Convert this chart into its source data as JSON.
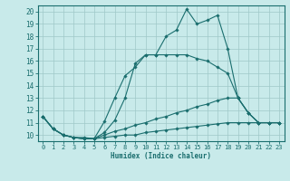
{
  "xlabel": "Humidex (Indice chaleur)",
  "bg_color": "#c8eaea",
  "grid_color": "#9fc8c8",
  "line_color": "#1a6e6e",
  "xlim": [
    -0.5,
    23.5
  ],
  "ylim": [
    9.5,
    20.5
  ],
  "xticks": [
    0,
    1,
    2,
    3,
    4,
    5,
    6,
    7,
    8,
    9,
    10,
    11,
    12,
    13,
    14,
    15,
    16,
    17,
    18,
    19,
    20,
    21,
    22,
    23
  ],
  "yticks": [
    10,
    11,
    12,
    13,
    14,
    15,
    16,
    17,
    18,
    19,
    20
  ],
  "lines": [
    {
      "x": [
        0,
        1,
        2,
        3,
        4,
        5,
        6,
        7,
        8,
        9,
        10,
        11,
        12,
        13,
        14,
        15,
        16,
        17,
        18,
        19,
        20,
        21,
        22,
        23
      ],
      "y": [
        11.5,
        10.5,
        10.0,
        9.8,
        9.8,
        9.7,
        11.1,
        13.0,
        14.8,
        15.5,
        16.5,
        16.5,
        18.0,
        18.5,
        20.2,
        19.0,
        19.3,
        19.7,
        17.0,
        13.0,
        11.8,
        11.0,
        11.0,
        11.0
      ]
    },
    {
      "x": [
        0,
        1,
        2,
        3,
        4,
        5,
        6,
        7,
        8,
        9,
        10,
        11,
        12,
        13,
        14,
        15,
        16,
        17,
        18,
        19,
        20,
        21,
        22,
        23
      ],
      "y": [
        11.5,
        10.5,
        10.0,
        9.8,
        9.7,
        9.7,
        10.2,
        11.2,
        13.0,
        15.8,
        16.5,
        16.5,
        16.5,
        16.5,
        16.5,
        16.2,
        16.0,
        15.5,
        15.0,
        13.0,
        11.8,
        11.0,
        11.0,
        11.0
      ]
    },
    {
      "x": [
        0,
        1,
        2,
        3,
        4,
        5,
        6,
        7,
        8,
        9,
        10,
        11,
        12,
        13,
        14,
        15,
        16,
        17,
        18,
        19,
        20,
        21,
        22,
        23
      ],
      "y": [
        11.5,
        10.5,
        10.0,
        9.8,
        9.7,
        9.7,
        10.0,
        10.3,
        10.5,
        10.8,
        11.0,
        11.3,
        11.5,
        11.8,
        12.0,
        12.3,
        12.5,
        12.8,
        13.0,
        13.0,
        11.8,
        11.0,
        11.0,
        11.0
      ]
    },
    {
      "x": [
        0,
        1,
        2,
        3,
        4,
        5,
        6,
        7,
        8,
        9,
        10,
        11,
        12,
        13,
        14,
        15,
        16,
        17,
        18,
        19,
        20,
        21,
        22,
        23
      ],
      "y": [
        11.5,
        10.5,
        10.0,
        9.8,
        9.7,
        9.7,
        9.8,
        9.9,
        10.0,
        10.0,
        10.2,
        10.3,
        10.4,
        10.5,
        10.6,
        10.7,
        10.8,
        10.9,
        11.0,
        11.0,
        11.0,
        11.0,
        11.0,
        11.0
      ]
    }
  ]
}
